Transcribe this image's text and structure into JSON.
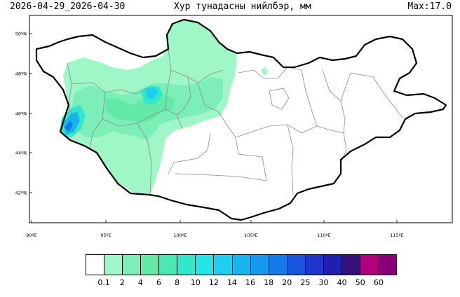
{
  "header": {
    "date_range": "2026-04-29_2026-04-30",
    "title": "Хур тунадасны нийлбэр, мм",
    "max": "Max:17.0"
  },
  "axes": {
    "lat_labels": [
      "50ºN",
      "48ºN",
      "46ºN",
      "44ºN",
      "42ºN"
    ],
    "lon_labels": [
      "90ºE",
      "95ºE",
      "100ºE",
      "105ºE",
      "110ºE",
      "115ºE"
    ]
  },
  "legend": {
    "labels": [
      "0.1",
      "2",
      "4",
      "6",
      "8",
      "10",
      "12",
      "14",
      "16",
      "18",
      "20",
      "25",
      "30",
      "40",
      "50",
      "60"
    ],
    "colors": [
      "#ffffff",
      "#9ff7c8",
      "#7deeb8",
      "#63eaa8",
      "#49e7b4",
      "#33e7cc",
      "#22e5e5",
      "#1dcfee",
      "#18b4f0",
      "#1598ee",
      "#137aea",
      "#1a55e0",
      "#1e35cf",
      "#1f1fb0",
      "#35127a",
      "#b0007a",
      "#8a007a"
    ]
  }
}
